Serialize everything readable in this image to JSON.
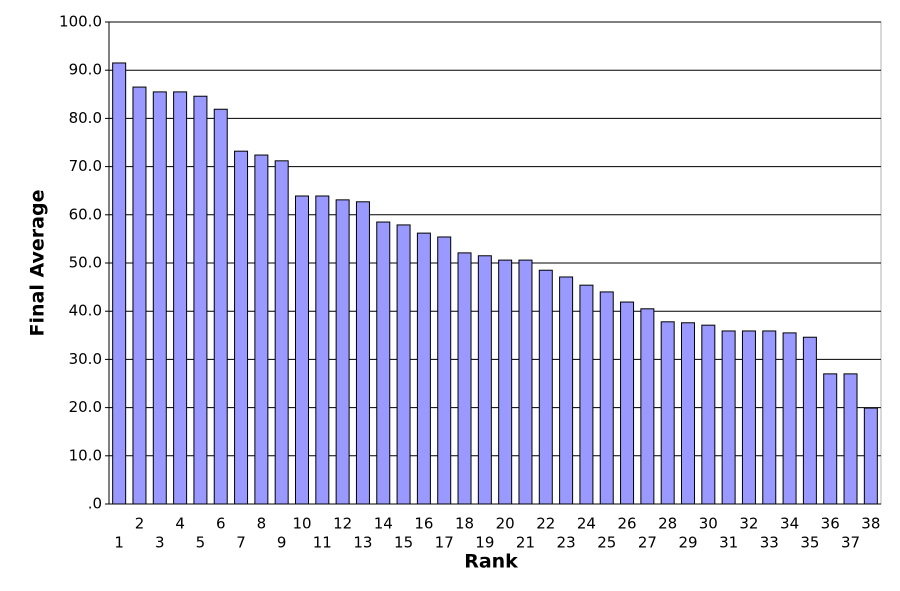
{
  "chart_data": {
    "type": "bar",
    "x_label": "Rank",
    "y_label": "Final Average",
    "categories": [
      "1",
      "2",
      "3",
      "4",
      "5",
      "6",
      "7",
      "8",
      "9",
      "10",
      "11",
      "12",
      "13",
      "14",
      "15",
      "16",
      "17",
      "18",
      "19",
      "20",
      "21",
      "22",
      "23",
      "24",
      "25",
      "26",
      "27",
      "28",
      "29",
      "30",
      "31",
      "32",
      "33",
      "34",
      "35",
      "36",
      "37",
      "38"
    ],
    "values": [
      91.5,
      86.5,
      85.5,
      85.5,
      84.6,
      81.9,
      73.2,
      72.4,
      71.2,
      63.9,
      63.9,
      63.1,
      62.7,
      58.5,
      57.9,
      56.2,
      55.4,
      52.1,
      51.5,
      50.6,
      50.6,
      48.5,
      47.1,
      45.4,
      44.0,
      41.9,
      40.5,
      37.8,
      37.6,
      37.1,
      35.9,
      35.9,
      35.9,
      35.5,
      34.6,
      27.0,
      27.0,
      19.9
    ],
    "color": "#9999ff",
    "ylim": [
      0,
      100
    ],
    "yticks": [
      {
        "value": 0,
        "label": ".0"
      },
      {
        "value": 10,
        "label": "10.0"
      },
      {
        "value": 20,
        "label": "20.0"
      },
      {
        "value": 30,
        "label": "30.0"
      },
      {
        "value": 40,
        "label": "40.0"
      },
      {
        "value": 50,
        "label": "50.0"
      },
      {
        "value": 60,
        "label": "60.0"
      },
      {
        "value": 70,
        "label": "70.0"
      },
      {
        "value": 80,
        "label": "80.0"
      },
      {
        "value": 90,
        "label": "90.0"
      },
      {
        "value": 100,
        "label": "100.0"
      }
    ],
    "grid": true
  }
}
